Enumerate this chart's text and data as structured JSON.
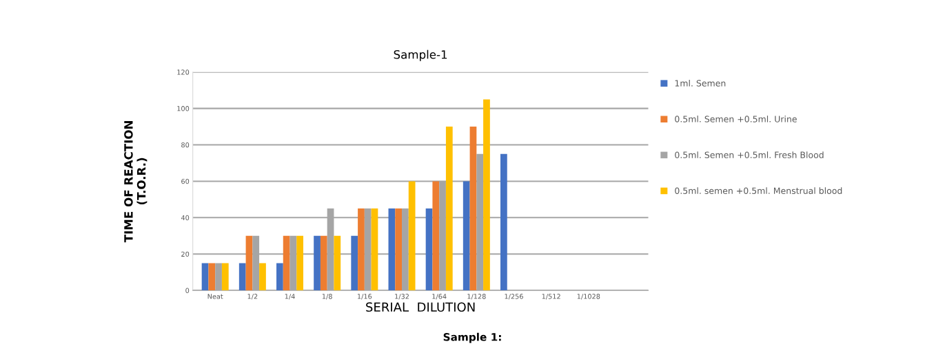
{
  "chart_data": {
    "type": "bar",
    "title": "Sample-1",
    "xlabel": "SERIAL  DILUTION",
    "ylabel": "TIME OF REACTION\n(T.O.R.)",
    "categories": [
      "Neat",
      "1/2",
      "1/4",
      "1/8",
      "1/16",
      "1/32",
      "1/64",
      "1/128",
      "1/256",
      "1/512",
      "1/1028"
    ],
    "series": [
      {
        "name": "1ml. Semen",
        "color": "#4472c4",
        "values": [
          15,
          15,
          15,
          30,
          30,
          45,
          45,
          60,
          75,
          null,
          null
        ]
      },
      {
        "name": "0.5ml. Semen +0.5ml. Urine",
        "color": "#ed7d31",
        "values": [
          15,
          30,
          30,
          30,
          45,
          45,
          60,
          90,
          null,
          null,
          null
        ]
      },
      {
        "name": "0.5ml. Semen +0.5ml. Fresh Blood",
        "color": "#a5a5a5",
        "values": [
          15,
          30,
          30,
          45,
          45,
          45,
          60,
          75,
          null,
          null,
          null
        ]
      },
      {
        "name": "0.5ml. semen +0.5ml. Menstrual blood",
        "color": "#ffc000",
        "values": [
          15,
          15,
          30,
          30,
          45,
          60,
          90,
          105,
          null,
          null,
          null
        ]
      }
    ],
    "ylim": [
      0,
      120
    ],
    "yticks": [
      0,
      20,
      40,
      60,
      80,
      100,
      120
    ],
    "grid": "y",
    "legend": "right",
    "annotations": [
      "Sample 1:"
    ]
  }
}
